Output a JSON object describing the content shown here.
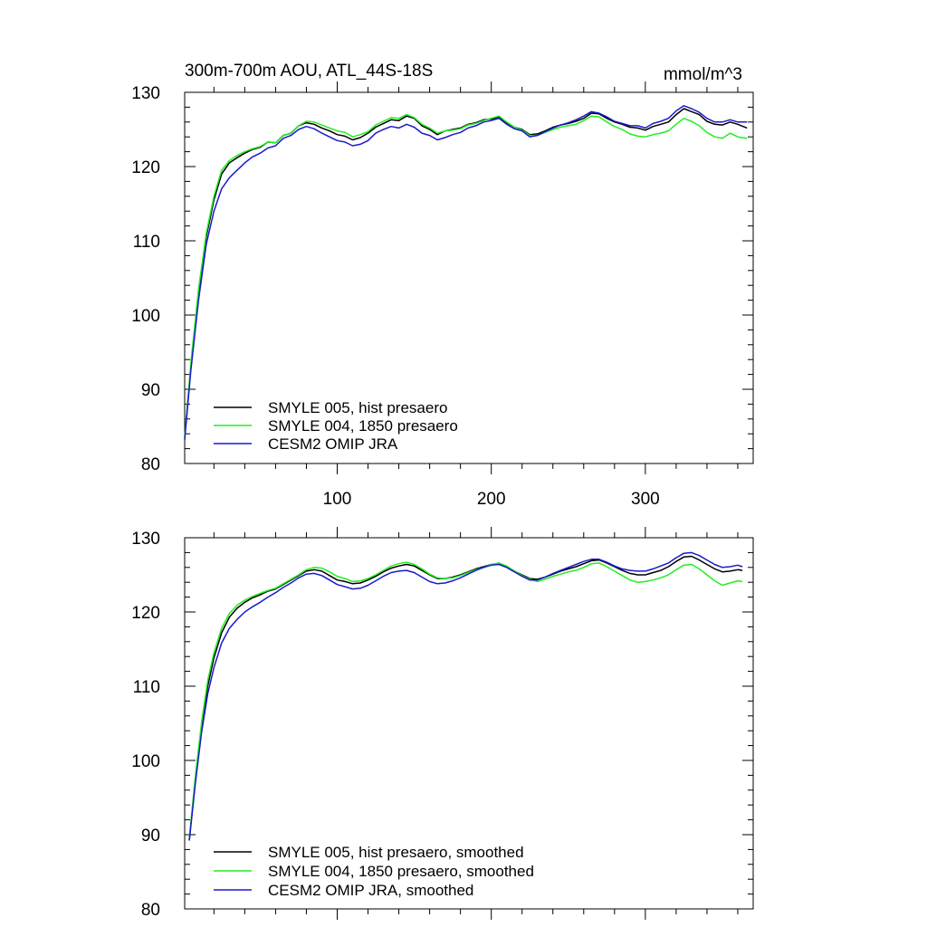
{
  "figure": {
    "title_left": "300m-700m AOU, ATL_44S-18S",
    "title_right": "mmol/m^3"
  },
  "colors": {
    "black": "#000000",
    "green": "#22ee22",
    "blue": "#1a1acd"
  },
  "chart_data": [
    {
      "type": "line",
      "title": "300m-700m AOU, ATL_44S-18S",
      "units": "mmol/m^3",
      "xlim": [
        1,
        370
      ],
      "ylim": [
        80,
        130
      ],
      "x_ticks": [
        100,
        200,
        300
      ],
      "x_tick_labels": [
        "100",
        "200",
        "300"
      ],
      "y_ticks": [
        80,
        90,
        100,
        110,
        120,
        130
      ],
      "y_tick_labels": [
        "80",
        "90",
        "100",
        "110",
        "120",
        "130"
      ],
      "legend_position": "bottom-left",
      "series": [
        {
          "name": "SMYLE 005, hist presaero",
          "color": "#000000",
          "x": [
            1,
            5,
            10,
            15,
            20,
            25,
            30,
            35,
            40,
            45,
            50,
            55,
            60,
            65,
            70,
            75,
            80,
            85,
            90,
            95,
            100,
            105,
            110,
            115,
            120,
            125,
            130,
            135,
            140,
            145,
            150,
            155,
            160,
            165,
            170,
            175,
            180,
            185,
            190,
            195,
            200,
            205,
            210,
            215,
            220,
            225,
            230,
            235,
            240,
            245,
            250,
            255,
            260,
            265,
            270,
            275,
            280,
            285,
            290,
            295,
            300,
            305,
            310,
            315,
            320,
            325,
            330,
            335,
            340,
            345,
            350,
            355,
            360,
            366
          ],
          "y": [
            83.5,
            93,
            103,
            110.5,
            115.5,
            119,
            120.5,
            121.2,
            121.8,
            122.3,
            122.6,
            123.3,
            123.2,
            124.2,
            124.5,
            125.5,
            125.9,
            125.7,
            125.2,
            124.8,
            124.3,
            124.1,
            123.6,
            123.9,
            124.5,
            125.3,
            125.8,
            126.3,
            126.2,
            126.8,
            126.5,
            125.5,
            125.0,
            124.3,
            124.8,
            125.0,
            125.2,
            125.7,
            125.9,
            126.3,
            126.4,
            126.7,
            125.9,
            125.3,
            125.0,
            124.3,
            124.4,
            124.8,
            125.3,
            125.6,
            125.8,
            126.1,
            126.5,
            127.2,
            127.1,
            126.5,
            126.0,
            125.7,
            125.3,
            125.2,
            124.9,
            125.4,
            125.7,
            126.0,
            127.0,
            127.8,
            127.4,
            127.0,
            126.1,
            125.7,
            125.6,
            126.0,
            125.7,
            125.2
          ]
        },
        {
          "name": "SMYLE 004, 1850 presaero",
          "color": "#22ee22",
          "x": [
            1,
            5,
            10,
            15,
            20,
            25,
            30,
            35,
            40,
            45,
            50,
            55,
            60,
            65,
            70,
            75,
            80,
            85,
            90,
            95,
            100,
            105,
            110,
            115,
            120,
            125,
            130,
            135,
            140,
            145,
            150,
            155,
            160,
            165,
            170,
            175,
            180,
            185,
            190,
            195,
            200,
            205,
            210,
            215,
            220,
            225,
            230,
            235,
            240,
            245,
            250,
            255,
            260,
            265,
            270,
            275,
            280,
            285,
            290,
            295,
            300,
            305,
            310,
            315,
            320,
            325,
            330,
            335,
            340,
            345,
            350,
            355,
            360,
            366
          ],
          "y": [
            83.5,
            93.5,
            103.5,
            111,
            116,
            119.5,
            120.8,
            121.5,
            122.0,
            122.4,
            122.7,
            123.3,
            123.2,
            124.2,
            124.5,
            125.5,
            126.1,
            126.0,
            125.6,
            125.2,
            124.8,
            124.6,
            124.0,
            124.3,
            124.7,
            125.6,
            126.1,
            126.6,
            126.5,
            127.0,
            126.6,
            125.7,
            125.2,
            124.5,
            124.8,
            124.9,
            125.1,
            125.6,
            125.8,
            126.2,
            126.5,
            126.8,
            126.0,
            125.3,
            124.9,
            124.2,
            124.2,
            124.6,
            125.0,
            125.3,
            125.5,
            125.7,
            126.2,
            126.8,
            126.7,
            126.0,
            125.4,
            125.0,
            124.4,
            124.1,
            124.0,
            124.3,
            124.5,
            124.8,
            125.7,
            126.5,
            126.1,
            125.5,
            124.6,
            124.0,
            123.8,
            124.5,
            124.0,
            123.8
          ]
        },
        {
          "name": "CESM2 OMIP JRA",
          "color": "#1a1acd",
          "x": [
            1,
            5,
            10,
            15,
            20,
            25,
            30,
            35,
            40,
            45,
            50,
            55,
            60,
            65,
            70,
            75,
            80,
            85,
            90,
            95,
            100,
            105,
            110,
            115,
            120,
            125,
            130,
            135,
            140,
            145,
            150,
            155,
            160,
            165,
            170,
            175,
            180,
            185,
            190,
            195,
            200,
            205,
            210,
            215,
            220,
            225,
            230,
            235,
            240,
            245,
            250,
            255,
            260,
            265,
            270,
            275,
            280,
            285,
            290,
            295,
            300,
            305,
            310,
            315,
            320,
            325,
            330,
            335,
            340,
            345,
            350,
            355,
            360,
            366
          ],
          "y": [
            83.2,
            92.5,
            102,
            109.5,
            114,
            117,
            118.5,
            119.5,
            120.5,
            121.3,
            121.8,
            122.5,
            122.8,
            123.8,
            124.2,
            125.0,
            125.4,
            125.1,
            124.5,
            124.0,
            123.5,
            123.3,
            122.8,
            123.0,
            123.5,
            124.5,
            125.0,
            125.4,
            125.2,
            125.7,
            125.3,
            124.5,
            124.2,
            123.6,
            123.9,
            124.3,
            124.6,
            125.2,
            125.5,
            126.0,
            126.2,
            126.5,
            125.7,
            125.1,
            124.8,
            124.0,
            124.2,
            124.7,
            125.2,
            125.6,
            125.9,
            126.3,
            126.8,
            127.4,
            127.2,
            126.7,
            126.1,
            125.8,
            125.5,
            125.5,
            125.2,
            125.8,
            126.1,
            126.5,
            127.5,
            128.2,
            127.8,
            127.3,
            126.5,
            126.0,
            126.0,
            126.3,
            126.0,
            126.0
          ]
        }
      ]
    },
    {
      "type": "line",
      "title": "",
      "xlim": [
        1,
        370
      ],
      "ylim": [
        80,
        130
      ],
      "x_ticks": [
        100,
        200,
        300
      ],
      "x_tick_labels": [],
      "y_ticks": [
        80,
        90,
        100,
        110,
        120,
        130
      ],
      "y_tick_labels": [
        "80",
        "90",
        "100",
        "110",
        "120",
        "130"
      ],
      "legend_position": "bottom-left",
      "series": [
        {
          "name": "SMYLE 005, hist presaero, smoothed",
          "color": "#000000",
          "x": [
            4,
            8,
            12,
            16,
            20,
            25,
            30,
            35,
            40,
            45,
            50,
            55,
            60,
            65,
            70,
            75,
            80,
            85,
            90,
            95,
            100,
            105,
            110,
            115,
            120,
            125,
            130,
            135,
            140,
            145,
            150,
            155,
            160,
            165,
            170,
            175,
            180,
            185,
            190,
            195,
            200,
            205,
            210,
            215,
            220,
            225,
            230,
            235,
            240,
            245,
            250,
            255,
            260,
            265,
            270,
            275,
            280,
            285,
            290,
            295,
            300,
            305,
            310,
            315,
            320,
            325,
            330,
            335,
            340,
            345,
            350,
            355,
            360,
            363
          ],
          "y": [
            89.3,
            97.5,
            104.5,
            110.0,
            113.8,
            117.2,
            119.3,
            120.5,
            121.3,
            121.9,
            122.3,
            122.8,
            123.1,
            123.7,
            124.3,
            124.9,
            125.5,
            125.7,
            125.5,
            124.9,
            124.3,
            124.1,
            123.8,
            123.9,
            124.3,
            124.8,
            125.4,
            125.9,
            126.2,
            126.4,
            126.2,
            125.6,
            125.0,
            124.5,
            124.5,
            124.7,
            125.0,
            125.4,
            125.8,
            126.1,
            126.4,
            126.5,
            126.1,
            125.5,
            125.0,
            124.5,
            124.4,
            124.7,
            125.1,
            125.5,
            125.8,
            126.1,
            126.5,
            126.9,
            127.0,
            126.6,
            126.1,
            125.6,
            125.2,
            125.0,
            125.0,
            125.3,
            125.6,
            126.1,
            126.8,
            127.4,
            127.5,
            127.0,
            126.4,
            125.8,
            125.4,
            125.5,
            125.7,
            125.6
          ]
        },
        {
          "name": "SMYLE 004, 1850 presaero, smoothed",
          "color": "#22ee22",
          "x": [
            4,
            8,
            12,
            16,
            20,
            25,
            30,
            35,
            40,
            45,
            50,
            55,
            60,
            65,
            70,
            75,
            80,
            85,
            90,
            95,
            100,
            105,
            110,
            115,
            120,
            125,
            130,
            135,
            140,
            145,
            150,
            155,
            160,
            165,
            170,
            175,
            180,
            185,
            190,
            195,
            200,
            205,
            210,
            215,
            220,
            225,
            230,
            235,
            240,
            245,
            250,
            255,
            260,
            265,
            270,
            275,
            280,
            285,
            290,
            295,
            300,
            305,
            310,
            315,
            320,
            325,
            330,
            335,
            340,
            345,
            350,
            355,
            360,
            363
          ],
          "y": [
            89.5,
            98.0,
            105.2,
            110.8,
            114.5,
            117.8,
            119.8,
            120.9,
            121.6,
            122.1,
            122.5,
            122.9,
            123.2,
            123.8,
            124.4,
            125.0,
            125.7,
            126.0,
            125.9,
            125.4,
            124.8,
            124.5,
            124.1,
            124.2,
            124.5,
            125.0,
            125.6,
            126.2,
            126.5,
            126.7,
            126.4,
            125.8,
            125.1,
            124.6,
            124.5,
            124.6,
            124.9,
            125.3,
            125.7,
            126.0,
            126.4,
            126.6,
            126.2,
            125.5,
            124.9,
            124.4,
            124.1,
            124.4,
            124.8,
            125.1,
            125.4,
            125.6,
            126.0,
            126.5,
            126.6,
            126.1,
            125.5,
            124.9,
            124.3,
            124.0,
            124.1,
            124.3,
            124.6,
            125.0,
            125.7,
            126.3,
            126.4,
            125.8,
            125.0,
            124.2,
            123.6,
            123.9,
            124.2,
            124.1
          ]
        },
        {
          "name": "CESM2 OMIP JRA, smoothed",
          "color": "#1a1acd",
          "x": [
            4,
            8,
            12,
            16,
            20,
            25,
            30,
            35,
            40,
            45,
            50,
            55,
            60,
            65,
            70,
            75,
            80,
            85,
            90,
            95,
            100,
            105,
            110,
            115,
            120,
            125,
            130,
            135,
            140,
            145,
            150,
            155,
            160,
            165,
            170,
            175,
            180,
            185,
            190,
            195,
            200,
            205,
            210,
            215,
            220,
            225,
            230,
            235,
            240,
            245,
            250,
            255,
            260,
            265,
            270,
            275,
            280,
            285,
            290,
            295,
            300,
            305,
            310,
            315,
            320,
            325,
            330,
            335,
            340,
            345,
            350,
            355,
            360,
            363
          ],
          "y": [
            89.2,
            97.0,
            103.8,
            109.0,
            112.5,
            115.8,
            117.8,
            119.0,
            120.0,
            120.7,
            121.3,
            122.0,
            122.6,
            123.3,
            123.9,
            124.6,
            125.1,
            125.2,
            124.9,
            124.3,
            123.7,
            123.4,
            123.1,
            123.2,
            123.6,
            124.2,
            124.8,
            125.3,
            125.5,
            125.6,
            125.3,
            124.7,
            124.1,
            123.8,
            123.9,
            124.2,
            124.6,
            125.1,
            125.6,
            126.0,
            126.3,
            126.4,
            126.0,
            125.4,
            124.8,
            124.3,
            124.3,
            124.7,
            125.2,
            125.6,
            126.0,
            126.4,
            126.8,
            127.1,
            127.1,
            126.7,
            126.2,
            125.8,
            125.6,
            125.5,
            125.5,
            125.8,
            126.2,
            126.6,
            127.3,
            127.9,
            128.0,
            127.6,
            127.0,
            126.4,
            126.0,
            126.1,
            126.3,
            126.1
          ]
        }
      ]
    }
  ]
}
